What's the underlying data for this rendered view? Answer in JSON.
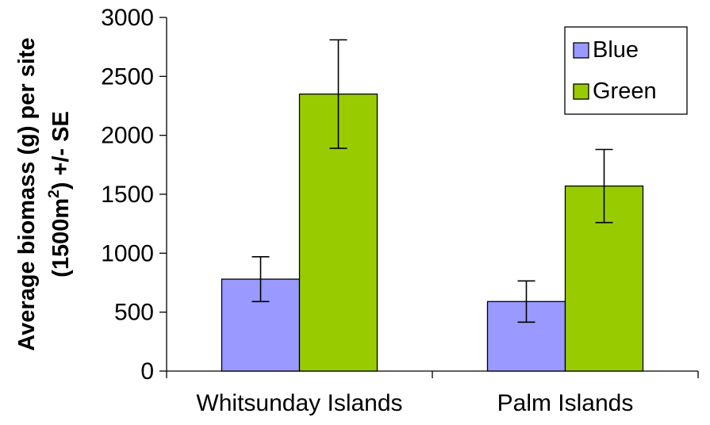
{
  "chart_data": {
    "type": "bar",
    "title": "",
    "xlabel": "",
    "ylabel_line1": "Average biomass (g) per site",
    "ylabel_line2_pre": "(1500m",
    "ylabel_line2_sup": "2",
    "ylabel_line2_post": ") +/- SE",
    "categories": [
      "Whitsunday Islands",
      "Palm Islands"
    ],
    "series": [
      {
        "name": "Blue",
        "color": "#9999ff",
        "values": [
          780,
          590
        ],
        "errors": [
          190,
          175
        ]
      },
      {
        "name": "Green",
        "color": "#99cc00",
        "values": [
          2350,
          1570
        ],
        "errors": [
          460,
          310
        ]
      }
    ],
    "ylim": [
      0,
      3000
    ],
    "yticks": [
      0,
      500,
      1000,
      1500,
      2000,
      2500,
      3000
    ],
    "grid": false,
    "legend_position": "top-right"
  }
}
